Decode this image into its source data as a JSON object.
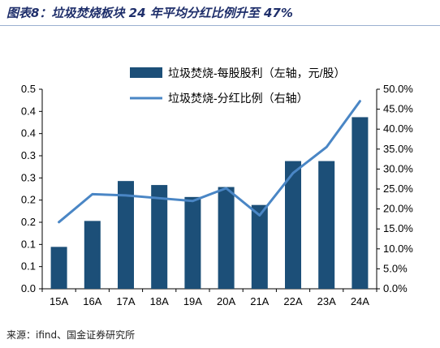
{
  "title": "图表8：垃圾焚烧板块 24 年平均分红比例升至 47%",
  "source": "来源：ifind、国金证券研究所",
  "colors": {
    "bar": "#1c4f78",
    "line": "#4a86c5",
    "title": "#1f2f6b"
  },
  "chart_data": {
    "type": "bar",
    "categories": [
      "15A",
      "16A",
      "17A",
      "18A",
      "19A",
      "20A",
      "21A",
      "22A",
      "23A",
      "24A"
    ],
    "series": [
      {
        "name": "垃圾焚烧-每股股利（左轴，元/股）",
        "type": "bar",
        "axis": "left",
        "values": [
          0.105,
          0.17,
          0.27,
          0.26,
          0.23,
          0.255,
          0.21,
          0.32,
          0.32,
          0.43
        ]
      },
      {
        "name": "垃圾焚烧-分红比例（右轴）",
        "type": "line",
        "axis": "right",
        "values": [
          0.167,
          0.237,
          0.234,
          0.227,
          0.22,
          0.252,
          0.184,
          0.29,
          0.355,
          0.47
        ]
      }
    ],
    "y_left": {
      "min": 0,
      "max": 0.5,
      "ticks": [
        "0.0",
        "0.1",
        "0.1",
        "0.2",
        "0.2",
        "0.3",
        "0.3",
        "0.4",
        "0.4",
        "0.5"
      ]
    },
    "y_right": {
      "min": 0,
      "max": 0.5,
      "ticks": [
        "0.0%",
        "5.0%",
        "10.0%",
        "15.0%",
        "20.0%",
        "25.0%",
        "30.0%",
        "35.0%",
        "40.0%",
        "45.0%",
        "50.0%"
      ]
    },
    "grid": false,
    "legend": "top-center"
  }
}
